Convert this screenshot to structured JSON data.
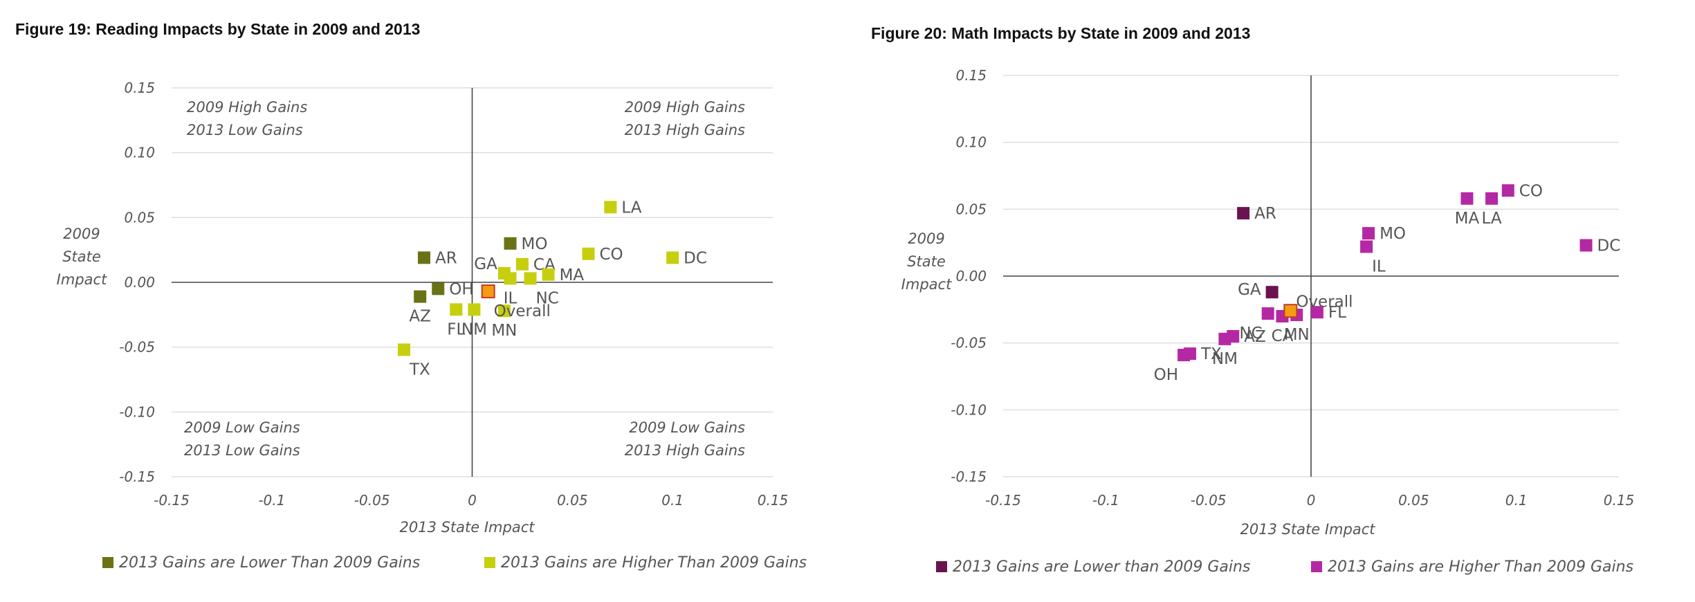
{
  "chart_data": [
    {
      "type": "scatter",
      "title": "Figure 19:  Reading Impacts by State in 2009 and 2013",
      "xlabel": "2013 State Impact",
      "ylabel": [
        "2009",
        "State",
        "Impact"
      ],
      "xlim": [
        -0.15,
        0.15
      ],
      "ylim": [
        -0.15,
        0.15
      ],
      "x_ticks": [
        -0.15,
        -0.1,
        -0.05,
        0,
        0.05,
        0.1,
        0.15
      ],
      "x_tick_labels": [
        "-0.15",
        "-0.1",
        "-0.05",
        "0",
        "0.05",
        "0.1",
        "0.15"
      ],
      "y_ticks": [
        0.15,
        0.1,
        0.05,
        0,
        -0.05,
        -0.1,
        -0.15
      ],
      "y_tick_labels": [
        "0.15",
        "0.10",
        "0.05",
        "0.00",
        "-0.05",
        "-0.10",
        "-0.15"
      ],
      "quadrant_labels": {
        "top_left": [
          "2009 High Gains",
          "2013 Low Gains"
        ],
        "top_right": [
          "2009 High Gains",
          "2013 High Gains"
        ],
        "bottom_left": [
          "2009 Low Gains",
          "2013 Low Gains"
        ],
        "bottom_right": [
          "2009 Low Gains",
          "2013 High Gains"
        ]
      },
      "series": [
        {
          "name": "2013 Gains are Lower Than 2009 Gains",
          "color": "#6b7215",
          "points": [
            {
              "label": "AR",
              "x": -0.024,
              "y": 0.019,
              "pos": "right"
            },
            {
              "label": "MO",
              "x": 0.019,
              "y": 0.03,
              "pos": "right"
            },
            {
              "label": "OH",
              "x": -0.017,
              "y": -0.005,
              "pos": "right"
            },
            {
              "label": "AZ",
              "x": -0.026,
              "y": -0.011,
              "pos": "below"
            }
          ]
        },
        {
          "name": "2013  Gains are Higher Than 2009 Gains",
          "color": "#c6cf0e",
          "points": [
            {
              "label": "LA",
              "x": 0.069,
              "y": 0.058,
              "pos": "right"
            },
            {
              "label": "CO",
              "x": 0.058,
              "y": 0.022,
              "pos": "right"
            },
            {
              "label": "DC",
              "x": 0.1,
              "y": 0.019,
              "pos": "right"
            },
            {
              "label": "GA",
              "x": 0.016,
              "y": 0.007,
              "pos": "upleft"
            },
            {
              "label": "CA",
              "x": 0.025,
              "y": 0.014,
              "pos": "right"
            },
            {
              "label": "MA",
              "x": 0.038,
              "y": 0.006,
              "pos": "right"
            },
            {
              "label": "IL",
              "x": 0.019,
              "y": 0.003,
              "pos": "below"
            },
            {
              "label": "NC",
              "x": 0.029,
              "y": 0.003,
              "pos": "belowright"
            },
            {
              "label": "FL",
              "x": -0.008,
              "y": -0.021,
              "pos": "below"
            },
            {
              "label": "NM",
              "x": 0.001,
              "y": -0.021,
              "pos": "below"
            },
            {
              "label": "MN",
              "x": 0.016,
              "y": -0.022,
              "pos": "below"
            },
            {
              "label": "TX",
              "x": -0.034,
              "y": -0.052,
              "pos": "belowright"
            }
          ]
        },
        {
          "name": "Overall",
          "color": "#f39c12",
          "points": [
            {
              "label": "Overall",
              "x": 0.008,
              "y": -0.007,
              "pos": "belowright"
            }
          ]
        }
      ]
    },
    {
      "type": "scatter",
      "title": "Figure 20:  Math Impacts by State in 2009 and 2013",
      "xlabel": "2013 State Impact",
      "ylabel": [
        "2009",
        "State",
        "Impact"
      ],
      "xlim": [
        -0.15,
        0.15
      ],
      "ylim": [
        -0.15,
        0.15
      ],
      "x_ticks": [
        -0.15,
        -0.1,
        -0.05,
        0,
        0.05,
        0.1,
        0.15
      ],
      "x_tick_labels": [
        "-0.15",
        "-0.1",
        "-0.05",
        "0",
        "0.05",
        "0.1",
        "0.15"
      ],
      "y_ticks": [
        0.15,
        0.1,
        0.05,
        0,
        -0.05,
        -0.1,
        -0.15
      ],
      "y_tick_labels": [
        "0.15",
        "0.10",
        "0.05",
        "0.00",
        "-0.05",
        "-0.10",
        "-0.15"
      ],
      "series": [
        {
          "name": "2013 Gains are Lower than 2009 Gains",
          "color": "#6b1350",
          "points": [
            {
              "label": "AR",
              "x": -0.033,
              "y": 0.047,
              "pos": "right"
            },
            {
              "label": "GA",
              "x": -0.019,
              "y": -0.012,
              "pos": "left"
            }
          ]
        },
        {
          "name": "2013  Gains are Higher Than 2009 Gains",
          "color": "#b428a4",
          "points": [
            {
              "label": "CO",
              "x": 0.096,
              "y": 0.064,
              "pos": "right"
            },
            {
              "label": "LA",
              "x": 0.088,
              "y": 0.058,
              "pos": "below"
            },
            {
              "label": "MA",
              "x": 0.076,
              "y": 0.058,
              "pos": "below"
            },
            {
              "label": "DC",
              "x": 0.134,
              "y": 0.023,
              "pos": "right"
            },
            {
              "label": "MO",
              "x": 0.028,
              "y": 0.032,
              "pos": "right"
            },
            {
              "label": "IL",
              "x": 0.027,
              "y": 0.022,
              "pos": "belowright"
            },
            {
              "label": "FL",
              "x": 0.003,
              "y": -0.027,
              "pos": "right"
            },
            {
              "label": "NC",
              "x": -0.021,
              "y": -0.028,
              "pos": "belowleft"
            },
            {
              "label": "CA",
              "x": -0.014,
              "y": -0.03,
              "pos": "below"
            },
            {
              "label": "MN",
              "x": -0.007,
              "y": -0.029,
              "pos": "below"
            },
            {
              "label": "AZ",
              "x": -0.038,
              "y": -0.045,
              "pos": "right"
            },
            {
              "label": "NM",
              "x": -0.042,
              "y": -0.047,
              "pos": "below"
            },
            {
              "label": "TX",
              "x": -0.059,
              "y": -0.058,
              "pos": "right"
            },
            {
              "label": "OH",
              "x": -0.062,
              "y": -0.059,
              "pos": "belowleft"
            }
          ]
        },
        {
          "name": "Overall",
          "color": "#f39c12",
          "points": [
            {
              "label": "Overall",
              "x": -0.01,
              "y": -0.026,
              "pos": "upright"
            }
          ]
        }
      ]
    }
  ]
}
